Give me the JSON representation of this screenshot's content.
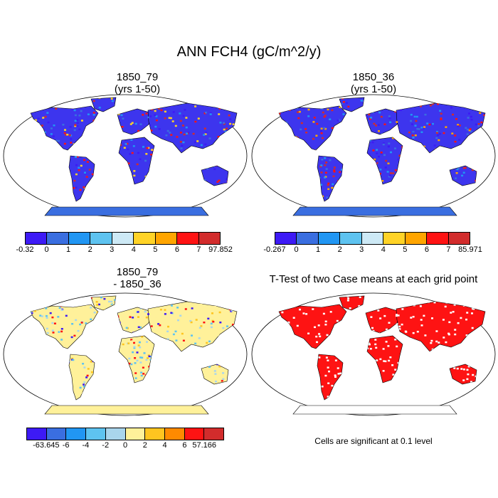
{
  "title": "ANN FCH4 (gC/m^2/y)",
  "panels": [
    {
      "title": "1850_79",
      "subtitle": "(yrs 1-50)"
    },
    {
      "title": "1850_36",
      "subtitle": "(yrs 1-50)"
    },
    {
      "title": "1850_79",
      "subtitle": "- 1850_36"
    },
    {
      "title": "T-Test of two Case means at each grid point"
    }
  ],
  "colorbars": [
    {
      "labels": [
        "-0.32",
        "0",
        "1",
        "2",
        "3",
        "4",
        "5",
        "6",
        "7",
        "97.852"
      ],
      "colors": [
        "#3d1af5",
        "#3a6ee0",
        "#2196f3",
        "#5ec3f0",
        "#cde9f5",
        "#ffd327",
        "#ffa500",
        "#fe1313",
        "#d22c2c"
      ]
    },
    {
      "labels": [
        "-0.267",
        "0",
        "1",
        "2",
        "3",
        "4",
        "5",
        "6",
        "7",
        "85.971"
      ],
      "colors": [
        "#3d1af5",
        "#3a6ee0",
        "#2196f3",
        "#5ec3f0",
        "#cde9f5",
        "#ffd327",
        "#ffa500",
        "#fe1313",
        "#d22c2c"
      ]
    },
    {
      "labels": [
        "-63.645",
        "-6",
        "-4",
        "-2",
        "0",
        "2",
        "4",
        "6",
        "57.166"
      ],
      "colors": [
        "#3d1af5",
        "#3a6ee0",
        "#2196f3",
        "#5ec3f0",
        "#a9d5ec",
        "#fff19a",
        "#ffc520",
        "#ff8a00",
        "#fe1313",
        "#d22c2c"
      ]
    }
  ],
  "significance_note": "Cells are significant at 0.1 level"
}
